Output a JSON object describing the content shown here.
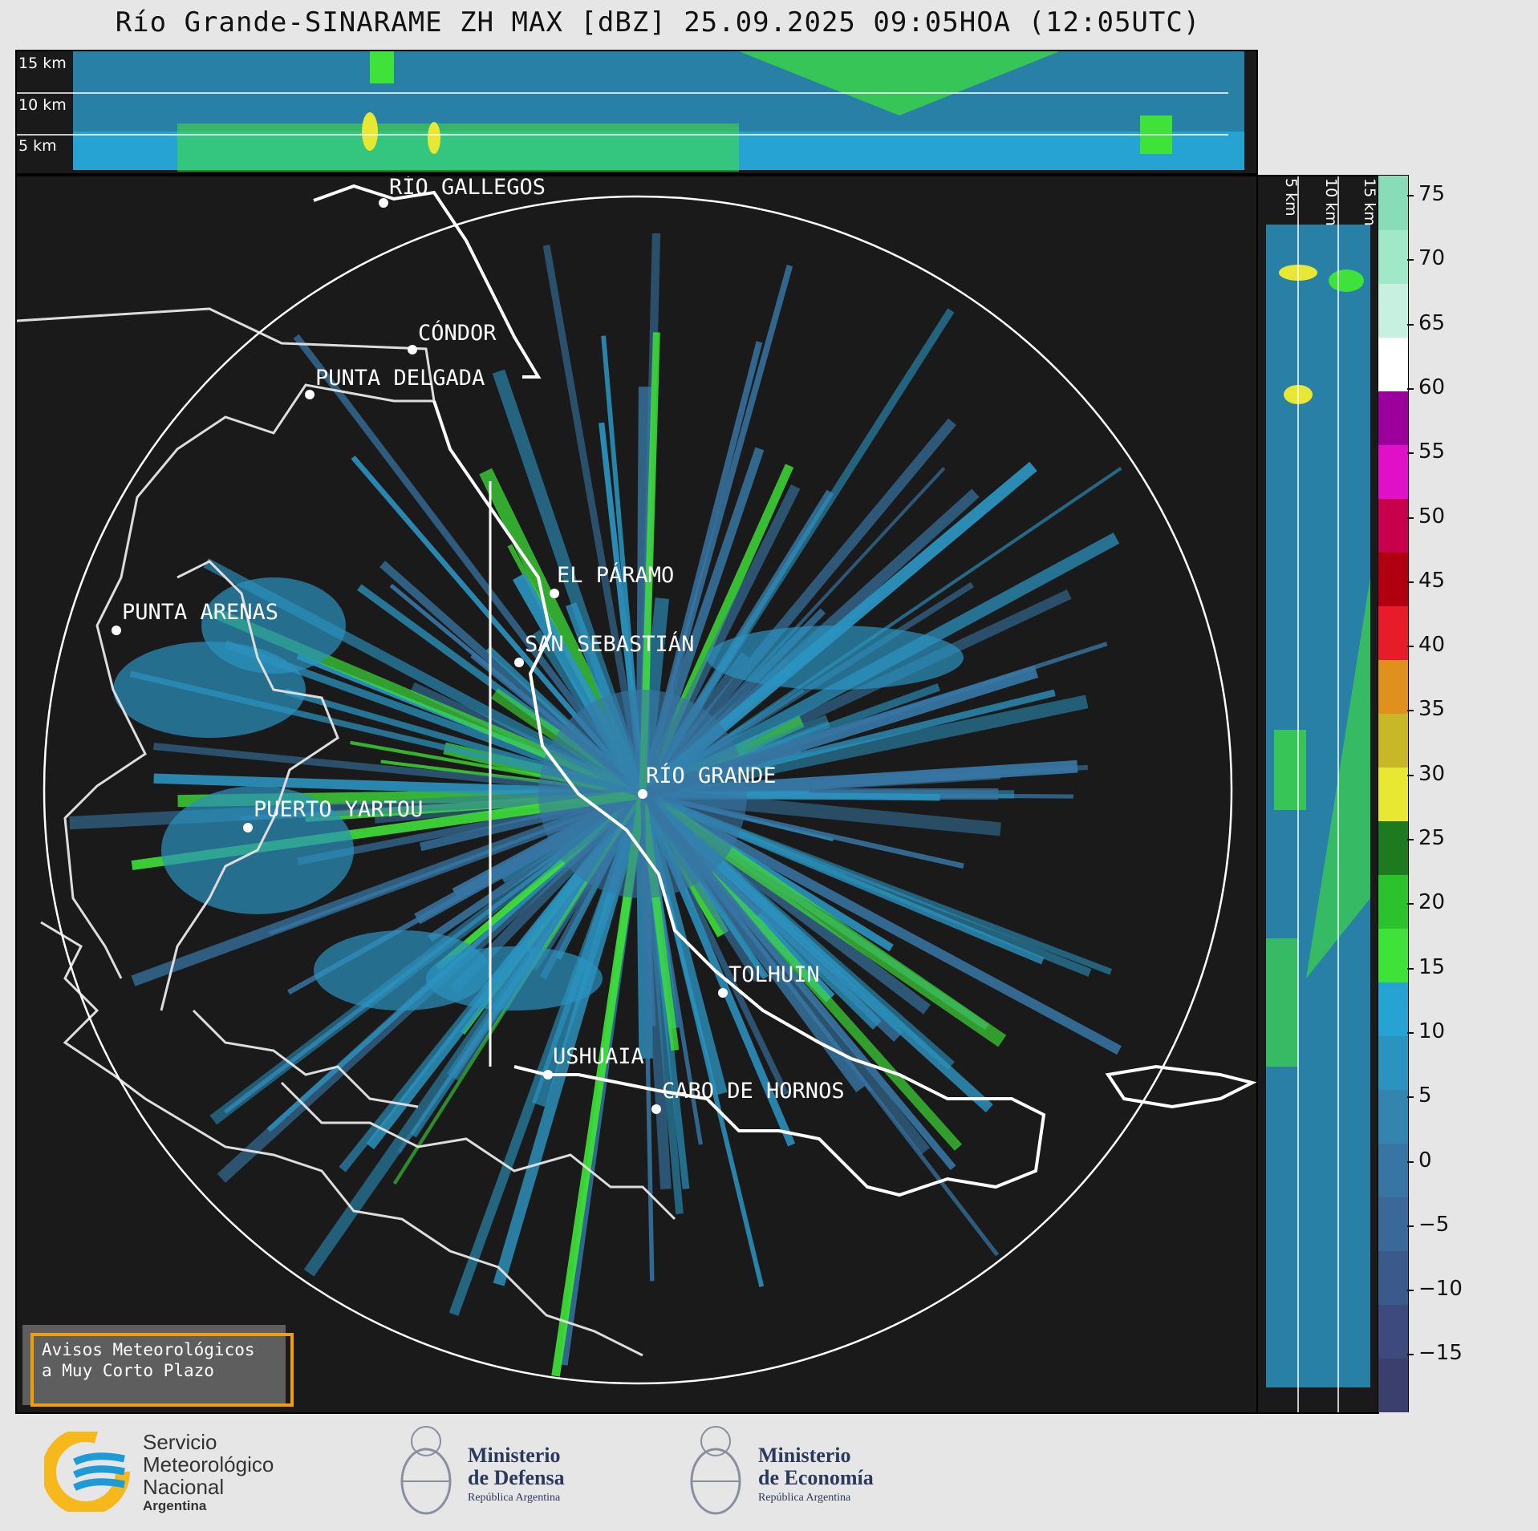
{
  "title": "Río Grande-SINARAME ZH MAX [dBZ] 25.09.2025 09:05HOA (12:05UTC)",
  "top_section": {
    "labels": [
      "15 km",
      "10 km",
      "5 km"
    ]
  },
  "side_section": {
    "labels": [
      "5 km",
      "10 km",
      "15 km"
    ]
  },
  "cities": [
    {
      "name": "RÍO GALLEGOS"
    },
    {
      "name": "CÓNDOR"
    },
    {
      "name": "PUNTA DELGADA"
    },
    {
      "name": "EL PÁRAMO"
    },
    {
      "name": "SAN SEBASTIÁN"
    },
    {
      "name": "PUNTA ARENAS"
    },
    {
      "name": "RÍO GRANDE"
    },
    {
      "name": "PUERTO YARTOU"
    },
    {
      "name": "TOLHUIN"
    },
    {
      "name": "USHUAIA"
    },
    {
      "name": "CABO DE HORNOS"
    }
  ],
  "colorbar": {
    "unit": "dBZ",
    "ticks": [
      "75",
      "70",
      "65",
      "60",
      "55",
      "50",
      "45",
      "40",
      "35",
      "30",
      "25",
      "20",
      "15",
      "10",
      "5",
      "0",
      "−5",
      "−10",
      "−15"
    ],
    "colors": [
      "#3b3f6e",
      "#3c4a7e",
      "#3b5a8c",
      "#3a6898",
      "#3776a4",
      "#3385b0",
      "#2b93bf",
      "#26a3d2",
      "#3fe238",
      "#2bc22e",
      "#1e7a1e",
      "#e8e832",
      "#c8b828",
      "#e0901c",
      "#e81c28",
      "#b00010",
      "#c8004c",
      "#e010c8",
      "#9c009c",
      "#ffffff",
      "#c8f0e0",
      "#a0e8c8",
      "#88dcb8"
    ]
  },
  "warning": {
    "line1": "Avisos Meteorológicos",
    "line2": "a Muy Corto Plazo"
  },
  "logos": {
    "smn": {
      "line1": "Servicio",
      "line2": "Meteorológico",
      "line3": "Nacional",
      "line4": "Argentina",
      "brand_blue": "#1e9ad6",
      "brand_yellow": "#f6b81a"
    },
    "defensa": {
      "line1": "Ministerio",
      "line2": "de Defensa",
      "line3": "República Argentina"
    },
    "economia": {
      "line1": "Ministerio",
      "line2": "de Economía",
      "line3": "República Argentina"
    }
  },
  "colors": {
    "background_panel": "#1a1a1a",
    "echo_light_blue": "#2b93bf",
    "echo_green": "#3fe238"
  }
}
